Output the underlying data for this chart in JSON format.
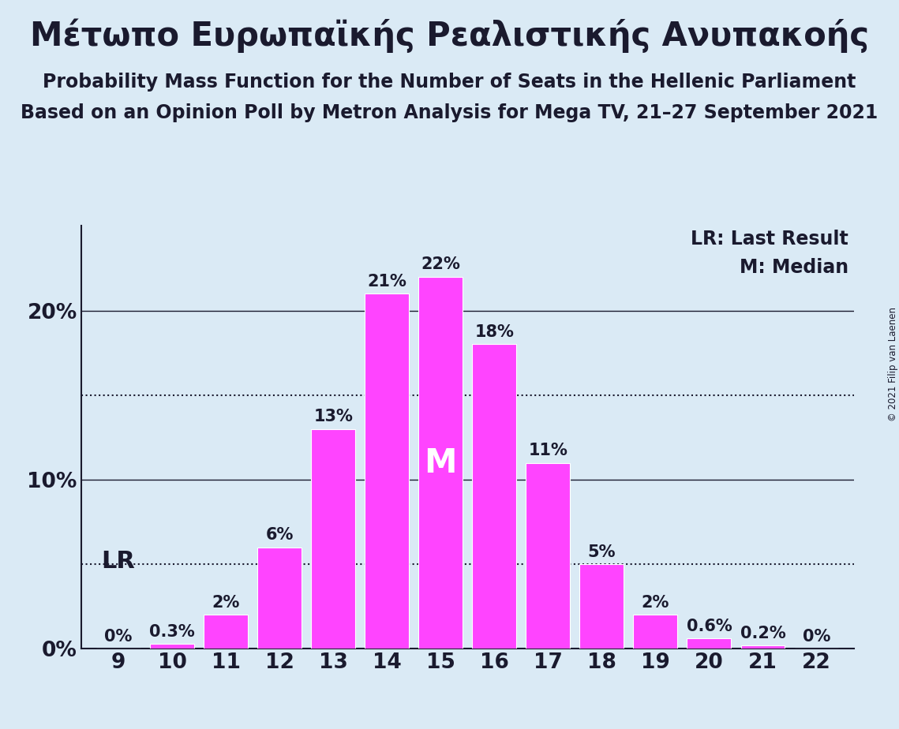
{
  "title_greek": "Μέτωπο Ευρωπαϊκής Ρεαλιστικής Ανυπακοής",
  "subtitle1": "Probability Mass Function for the Number of Seats in the Hellenic Parliament",
  "subtitle2": "Based on an Opinion Poll by Metron Analysis for Mega TV, 21–27 September 2021",
  "copyright": "© 2021 Filip van Laenen",
  "legend_lr": "LR: Last Result",
  "legend_m": "M: Median",
  "seats": [
    9,
    10,
    11,
    12,
    13,
    14,
    15,
    16,
    17,
    18,
    19,
    20,
    21,
    22
  ],
  "probabilities": [
    0.0,
    0.3,
    2.0,
    6.0,
    13.0,
    21.0,
    22.0,
    18.0,
    11.0,
    5.0,
    2.0,
    0.6,
    0.2,
    0.0
  ],
  "labels": [
    "0%",
    "0.3%",
    "2%",
    "6%",
    "13%",
    "21%",
    "22%",
    "18%",
    "11%",
    "5%",
    "2%",
    "0.6%",
    "0.2%",
    "0%"
  ],
  "show_label": [
    true,
    true,
    true,
    true,
    true,
    true,
    true,
    true,
    true,
    true,
    true,
    true,
    true,
    true
  ],
  "bar_color": "#FF44FF",
  "background_color": "#daeaf5",
  "text_color": "#1a1a2e",
  "lr_seat": 9,
  "median_seat": 15,
  "yticks": [
    0,
    10,
    20
  ],
  "ytick_labels": [
    "0%",
    "10%",
    "20%"
  ],
  "solid_lines": [
    10.0,
    20.0
  ],
  "dotted_lines": [
    5.0,
    15.0
  ],
  "ylim": [
    0,
    25
  ],
  "title_fontsize": 30,
  "subtitle_fontsize": 17,
  "label_fontsize": 15,
  "tick_fontsize": 19,
  "legend_fontsize": 17,
  "lr_fontsize": 22,
  "median_fontsize": 30,
  "bar_width": 0.82
}
